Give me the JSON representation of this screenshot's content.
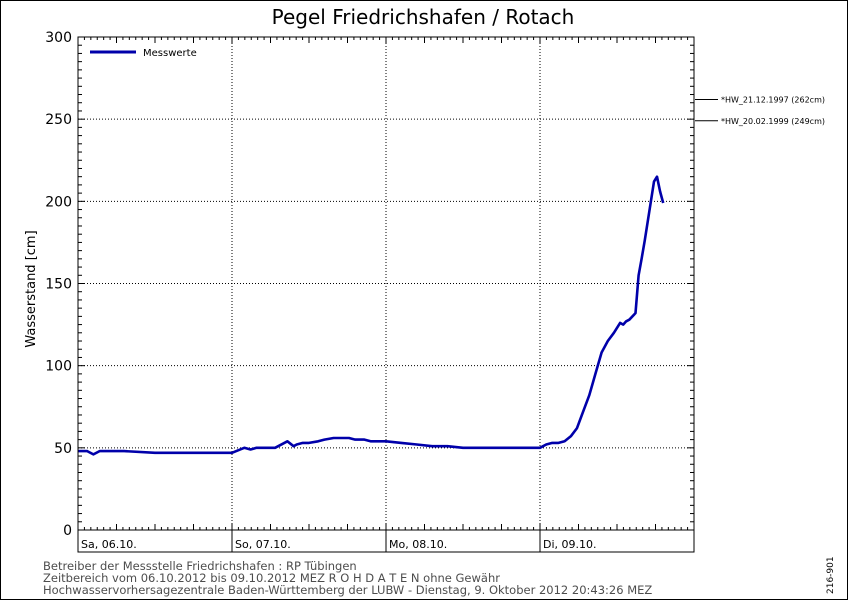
{
  "chart_data": {
    "type": "line",
    "title": "Pegel Friedrichshafen / Rotach",
    "ylabel": "Wasserstand [cm]",
    "ylim": [
      0,
      300
    ],
    "yticks": [
      0,
      50,
      100,
      150,
      200,
      250,
      300
    ],
    "xlim": [
      0,
      4
    ],
    "x_unit": "days from Sa, 06.10. 00:00",
    "day_labels": [
      "Sa, 06.10.",
      "So, 07.10.",
      "Mo, 08.10.",
      "Di, 09.10."
    ],
    "grid": true,
    "legend": "top-left",
    "series": [
      {
        "name": "Messwerte",
        "color": "#0000aa",
        "x": [
          0,
          0.06,
          0.1,
          0.14,
          0.2,
          0.3,
          0.5,
          0.6,
          0.7,
          0.8,
          0.9,
          1.0,
          1.08,
          1.12,
          1.16,
          1.2,
          1.28,
          1.36,
          1.4,
          1.42,
          1.46,
          1.5,
          1.56,
          1.6,
          1.66,
          1.7,
          1.76,
          1.8,
          1.86,
          1.9,
          2.0,
          2.1,
          2.2,
          2.3,
          2.4,
          2.5,
          2.6,
          2.7,
          2.8,
          2.86,
          2.9,
          2.96,
          3.0,
          3.04,
          3.08,
          3.12,
          3.16,
          3.2,
          3.24,
          3.28,
          3.32,
          3.36,
          3.4,
          3.44,
          3.48,
          3.52,
          3.54,
          3.56,
          3.58,
          3.62,
          3.64,
          3.66,
          3.68,
          3.72,
          3.74,
          3.76,
          3.78,
          3.8
        ],
        "values": [
          48,
          48,
          46,
          48,
          48,
          48,
          47,
          47,
          47,
          47,
          47,
          47,
          50,
          49,
          50,
          50,
          50,
          54,
          51,
          52,
          53,
          53,
          54,
          55,
          56,
          56,
          56,
          55,
          55,
          54,
          54,
          53,
          52,
          51,
          51,
          50,
          50,
          50,
          50,
          50,
          50,
          50,
          50,
          52,
          53,
          53,
          54,
          57,
          62,
          72,
          82,
          95,
          108,
          115,
          120,
          126,
          125,
          127,
          128,
          132,
          155,
          165,
          176,
          200,
          212,
          215,
          206,
          199
        ]
      }
    ],
    "reference_lines": [
      {
        "label": "*HW_21.12.1997 (262cm)",
        "value": 262
      },
      {
        "label": "*HW_20.02.1999 (249cm)",
        "value": 249
      }
    ]
  },
  "footer": {
    "line1": "Betreiber der Messstelle Friedrichshafen : RP Tübingen",
    "line2": "Zeitbereich vom 06.10.2012 bis 09.10.2012    MEZ    R O H D A T E N ohne Gewähr",
    "line3": "Hochwasservorhersagezentrale Baden-Württemberg der LUBW - Dienstag, 9. Oktober 2012 20:43:26 MEZ"
  },
  "code": "216-901"
}
